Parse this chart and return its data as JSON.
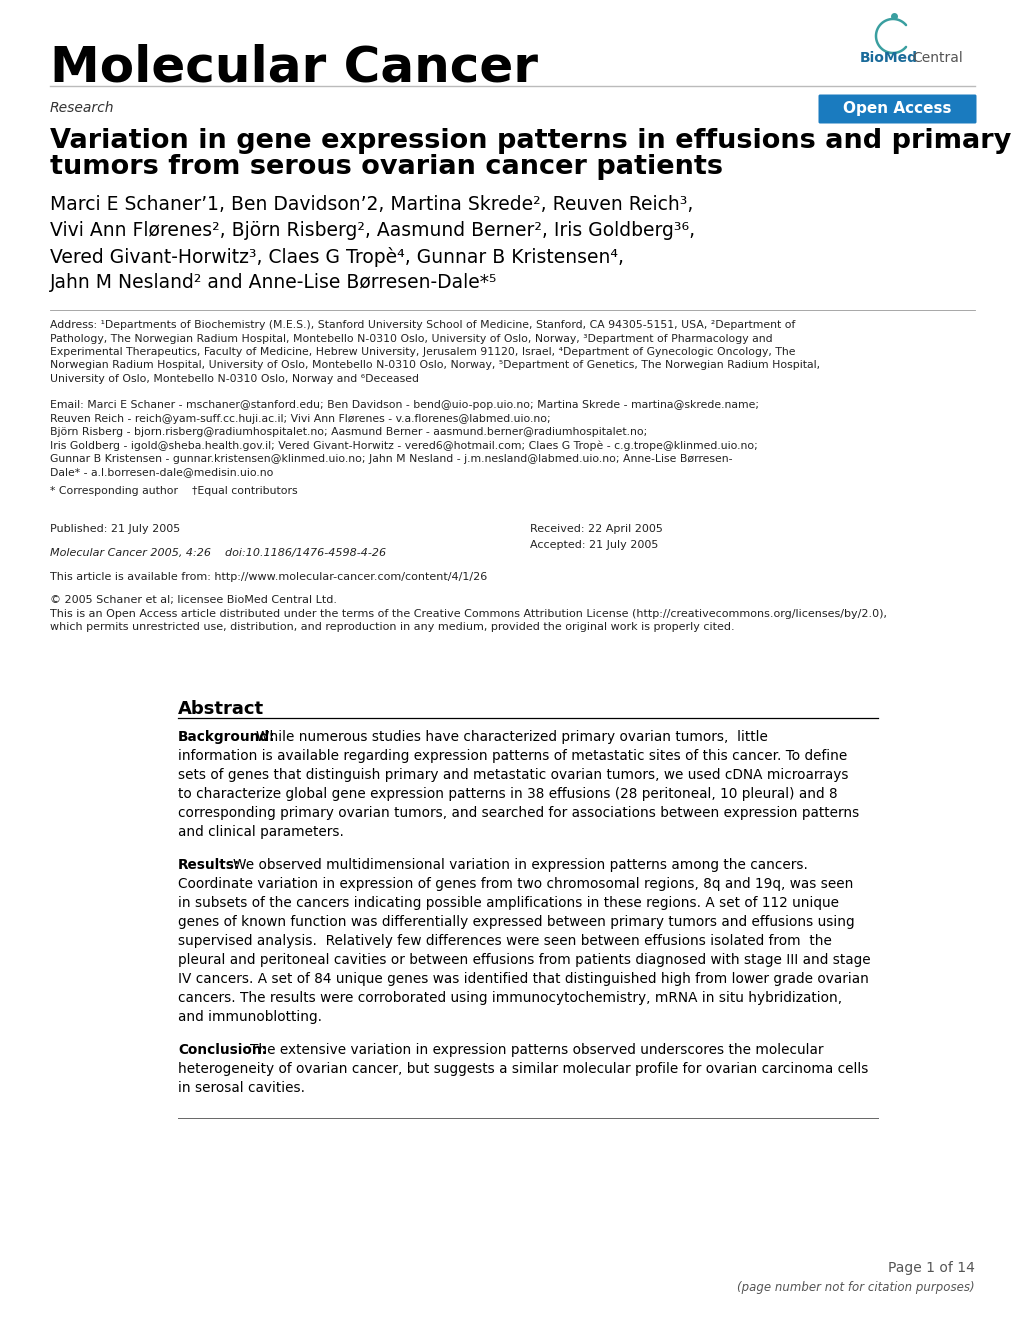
{
  "bg_color": "#ffffff",
  "journal_title": "Molecular Cancer",
  "section_label": "Research",
  "open_access_text": "Open Access",
  "open_access_bg": "#1a7bbf",
  "paper_title_line1": "Variation in gene expression patterns in effusions and primary",
  "paper_title_line2": "tumors from serous ovarian cancer patients",
  "authors_line1": "Marci E Schaner’1, Ben Davidson’2, Martina Skrede², Reuven Reich³,",
  "authors_line2": "Vivi Ann Flørenes², Björn Risberg², Aasmund Berner², Iris Goldberg³⁶,",
  "authors_line3": "Vered Givant-Horwitz³, Claes G Tropè⁴, Gunnar B Kristensen⁴,",
  "authors_line4": "Jahn M Nesland² and Anne-Lise Børresen-Dale*⁵",
  "address_line1": "Address: ¹Departments of Biochemistry (M.E.S.), Stanford University School of Medicine, Stanford, CA 94305-5151, USA, ²Department of",
  "address_line2": "Pathology, The Norwegian Radium Hospital, Montebello N-0310 Oslo, University of Oslo, Norway, ³Department of Pharmacology and",
  "address_line3": "Experimental Therapeutics, Faculty of Medicine, Hebrew University, Jerusalem 91120, Israel, ⁴Department of Gynecologic Oncology, The",
  "address_line4": "Norwegian Radium Hospital, University of Oslo, Montebello N-0310 Oslo, Norway, ⁵Department of Genetics, The Norwegian Radium Hospital,",
  "address_line5": "University of Oslo, Montebello N-0310 Oslo, Norway and ⁶Deceased",
  "email_line1": "Email: Marci E Schaner - mschaner@stanford.edu; Ben Davidson - bend@uio-pop.uio.no; Martina Skrede - martina@skrede.name;",
  "email_line2": "Reuven Reich - reich@yam-suff.cc.huji.ac.il; Vivi Ann Flørenes - v.a.florenes@labmed.uio.no;",
  "email_line3": "Björn Risberg - bjorn.risberg@radiumhospitalet.no; Aasmund Berner - aasmund.berner@radiumhospitalet.no;",
  "email_line4": "Iris Goldberg - igold@sheba.health.gov.il; Vered Givant-Horwitz - vered6@hotmail.com; Claes G Tropè - c.g.trope@klinmed.uio.no;",
  "email_line5": "Gunnar B Kristensen - gunnar.kristensen@klinmed.uio.no; Jahn M Nesland - j.m.nesland@labmed.uio.no; Anne-Lise Børresen-",
  "email_line6": "Dale* - a.l.borresen-dale@medisin.uio.no",
  "corresponding_text": "* Corresponding author    †Equal contributors",
  "published_text": "Published: 21 July 2005",
  "journal_cite": "Molecular Cancer 2005, 4:26    doi:10.1186/1476-4598-4-26",
  "available_text": "This article is available from: http://www.molecular-cancer.com/content/4/1/26",
  "copyright_line1": "© 2005 Schaner et al; licensee BioMed Central Ltd.",
  "copyright_line2": "This is an Open Access article distributed under the terms of the Creative Commons Attribution License (http://creativecommons.org/licenses/by/2.0),",
  "copyright_line3": "which permits unrestricted use, distribution, and reproduction in any medium, provided the original work is properly cited.",
  "received_text": "Received: 22 April 2005",
  "accepted_text": "Accepted: 21 July 2005",
  "abstract_title": "Abstract",
  "abstract_bg_label": "Background:",
  "abstract_bg_body_lines": [
    "While numerous studies have characterized primary ovarian tumors,  little",
    "information is available regarding expression patterns of metastatic sites of this cancer. To define",
    "sets of genes that distinguish primary and metastatic ovarian tumors, we used cDNA microarrays",
    "to characterize global gene expression patterns in 38 effusions (28 peritoneal, 10 pleural) and 8",
    "corresponding primary ovarian tumors, and searched for associations between expression patterns",
    "and clinical parameters."
  ],
  "abstract_res_label": "Results:",
  "abstract_res_body_lines": [
    "We observed multidimensional variation in expression patterns among the cancers.",
    "Coordinate variation in expression of genes from two chromosomal regions, 8q and 19q, was seen",
    "in subsets of the cancers indicating possible amplifications in these regions. A set of 112 unique",
    "genes of known function was differentially expressed between primary tumors and effusions using",
    "supervised analysis.  Relatively few differences were seen between effusions isolated from  the",
    "pleural and peritoneal cavities or between effusions from patients diagnosed with stage III and stage",
    "IV cancers. A set of 84 unique genes was identified that distinguished high from lower grade ovarian",
    "cancers. The results were corroborated using immunocytochemistry, mRNA in situ hybridization,",
    "and immunoblotting."
  ],
  "abstract_con_label": "Conclusion:",
  "abstract_con_body_lines": [
    "The extensive variation in expression patterns observed underscores the molecular",
    "heterogeneity of ovarian cancer, but suggests a similar molecular profile for ovarian carcinoma cells",
    "in serosal cavities."
  ],
  "page_footer_line1": "Page 1 of 14",
  "page_footer_line2": "(page number not for citation purposes)"
}
